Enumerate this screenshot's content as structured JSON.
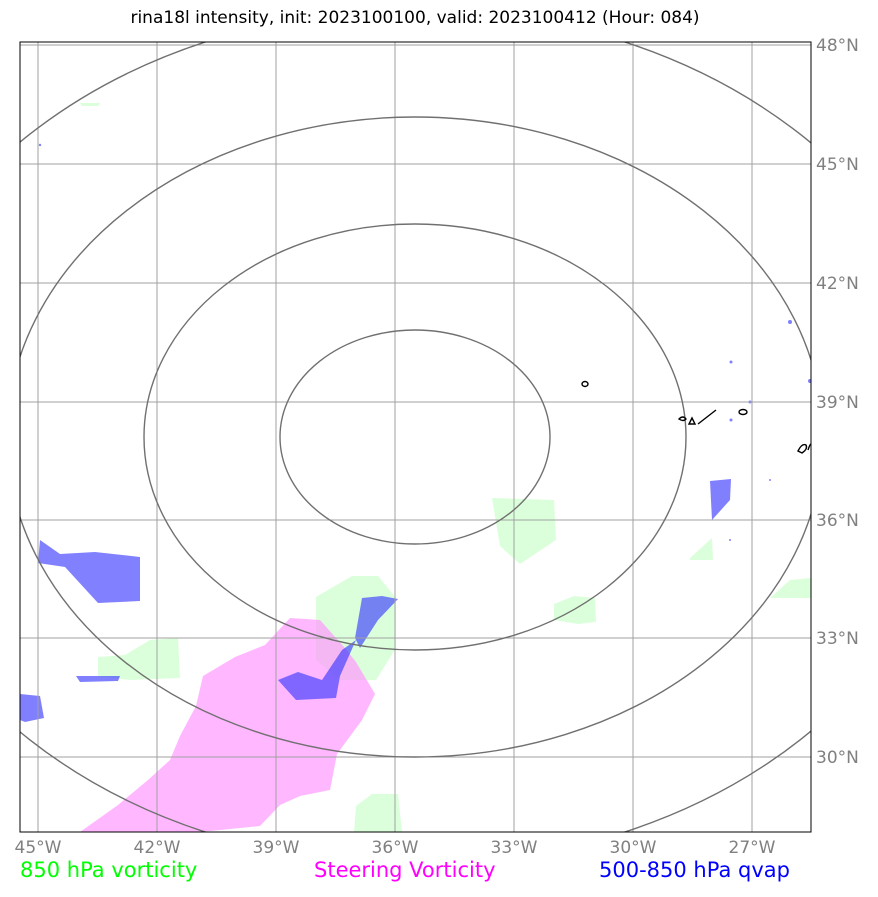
{
  "title": "rina18l intensity, init: 2023100100, valid: 2023100412 (Hour: 084)",
  "x_ticks": [
    "45°W",
    "42°W",
    "39°W",
    "36°W",
    "33°W",
    "30°W",
    "27°W"
  ],
  "y_ticks": [
    "48°N",
    "45°N",
    "42°N",
    "39°N",
    "36°N",
    "33°N",
    "30°N"
  ],
  "legend": {
    "green": "850 hPa vorticity",
    "magenta": "Steering Vorticity",
    "blue": "500-850 hPa qvap"
  },
  "colors": {
    "green_fill": "#ccffcc",
    "magenta_fill": "#ff99ff",
    "blue_fill": "#3333ff",
    "grid": "#a0a0a0",
    "rings": "#707070"
  }
}
